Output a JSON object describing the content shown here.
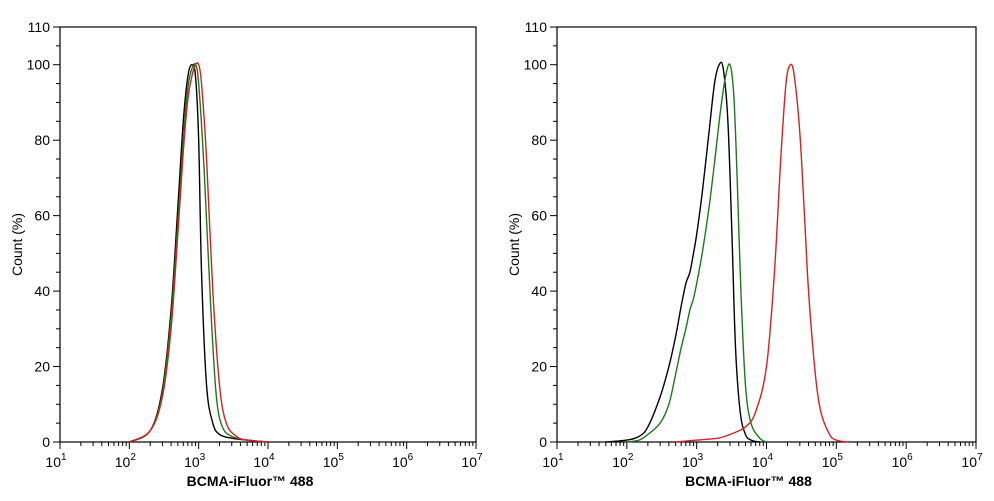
{
  "chart_data": [
    {
      "type": "line",
      "xlabel": "BCMA-iFluor™ 488",
      "ylabel": "Count  (%)",
      "xscale": "log",
      "xlim": [
        10,
        10000000
      ],
      "ylim": [
        0,
        110
      ],
      "x_tick_base": "10",
      "x_tick_exponents": [
        "1",
        "2",
        "3",
        "4",
        "5",
        "6",
        "7"
      ],
      "y_ticks": [
        "0",
        "20",
        "40",
        "60",
        "80",
        "100",
        "110"
      ],
      "grid": false,
      "series": [
        {
          "color": "#000000",
          "x": [
            100,
            200,
            300,
            400,
            500,
            600,
            700,
            800,
            900,
            1000,
            1100,
            1300,
            1600,
            2000,
            3000,
            5000,
            10000
          ],
          "y": [
            0,
            3,
            14,
            35,
            62,
            85,
            97,
            100,
            97,
            80,
            45,
            15,
            5,
            2,
            1,
            0.5,
            0
          ]
        },
        {
          "color": "#1a7a1a",
          "x": [
            100,
            200,
            300,
            400,
            500,
            600,
            700,
            800,
            900,
            1000,
            1200,
            1500,
            1800,
            2200,
            3000,
            5000,
            10000
          ],
          "y": [
            0,
            3,
            13,
            33,
            58,
            80,
            94,
            99,
            100,
            95,
            72,
            35,
            12,
            4,
            1.5,
            0.5,
            0
          ]
        },
        {
          "color": "#d42020",
          "x": [
            100,
            200,
            300,
            400,
            500,
            600,
            700,
            800,
            900,
            1000,
            1100,
            1300,
            1600,
            2000,
            2500,
            3500,
            5000,
            10000
          ],
          "y": [
            0,
            3,
            12,
            30,
            55,
            77,
            91,
            97,
            100,
            100,
            95,
            75,
            40,
            15,
            5,
            1.5,
            0.5,
            0
          ]
        }
      ]
    },
    {
      "type": "line",
      "xlabel": "BCMA-iFluor™ 488",
      "ylabel": "Count  (%)",
      "xscale": "log",
      "xlim": [
        10,
        10000000
      ],
      "ylim": [
        0,
        110
      ],
      "x_tick_base": "10",
      "x_tick_exponents": [
        "1",
        "2",
        "3",
        "4",
        "5",
        "6",
        "7"
      ],
      "y_ticks": [
        "0",
        "20",
        "40",
        "60",
        "80",
        "100",
        "110"
      ],
      "grid": false,
      "series": [
        {
          "color": "#000000",
          "x": [
            50,
            100,
            150,
            200,
            300,
            400,
            500,
            600,
            700,
            800,
            900,
            1000,
            1200,
            1500,
            1800,
            2100,
            2400,
            2800,
            3200,
            3600,
            4200,
            5000,
            6000,
            8000
          ],
          "y": [
            0,
            0.5,
            1.5,
            4,
            12,
            20,
            28,
            36,
            42,
            45,
            50,
            55,
            66,
            82,
            95,
            100,
            99,
            85,
            55,
            25,
            8,
            2,
            0.5,
            0
          ]
        },
        {
          "color": "#1a7a1a",
          "x": [
            100,
            150,
            200,
            300,
            400,
            500,
            600,
            700,
            800,
            900,
            1000,
            1200,
            1500,
            1800,
            2200,
            2600,
            3000,
            3400,
            3800,
            4300,
            5000,
            6000,
            8000,
            10000
          ],
          "y": [
            0,
            0.5,
            2,
            5,
            10,
            18,
            25,
            30,
            35,
            38,
            42,
            50,
            62,
            74,
            88,
            97,
            100,
            92,
            70,
            40,
            15,
            5,
            1,
            0
          ]
        },
        {
          "color": "#d42020",
          "x": [
            500,
            1000,
            2000,
            3000,
            5000,
            7000,
            10000,
            13000,
            16000,
            19000,
            22000,
            25000,
            30000,
            35000,
            40000,
            50000,
            60000,
            80000,
            100000,
            150000
          ],
          "y": [
            0,
            0.5,
            1,
            2,
            4,
            8,
            20,
            45,
            75,
            95,
            100,
            97,
            82,
            60,
            40,
            18,
            8,
            2,
            0.5,
            0
          ]
        }
      ]
    }
  ]
}
